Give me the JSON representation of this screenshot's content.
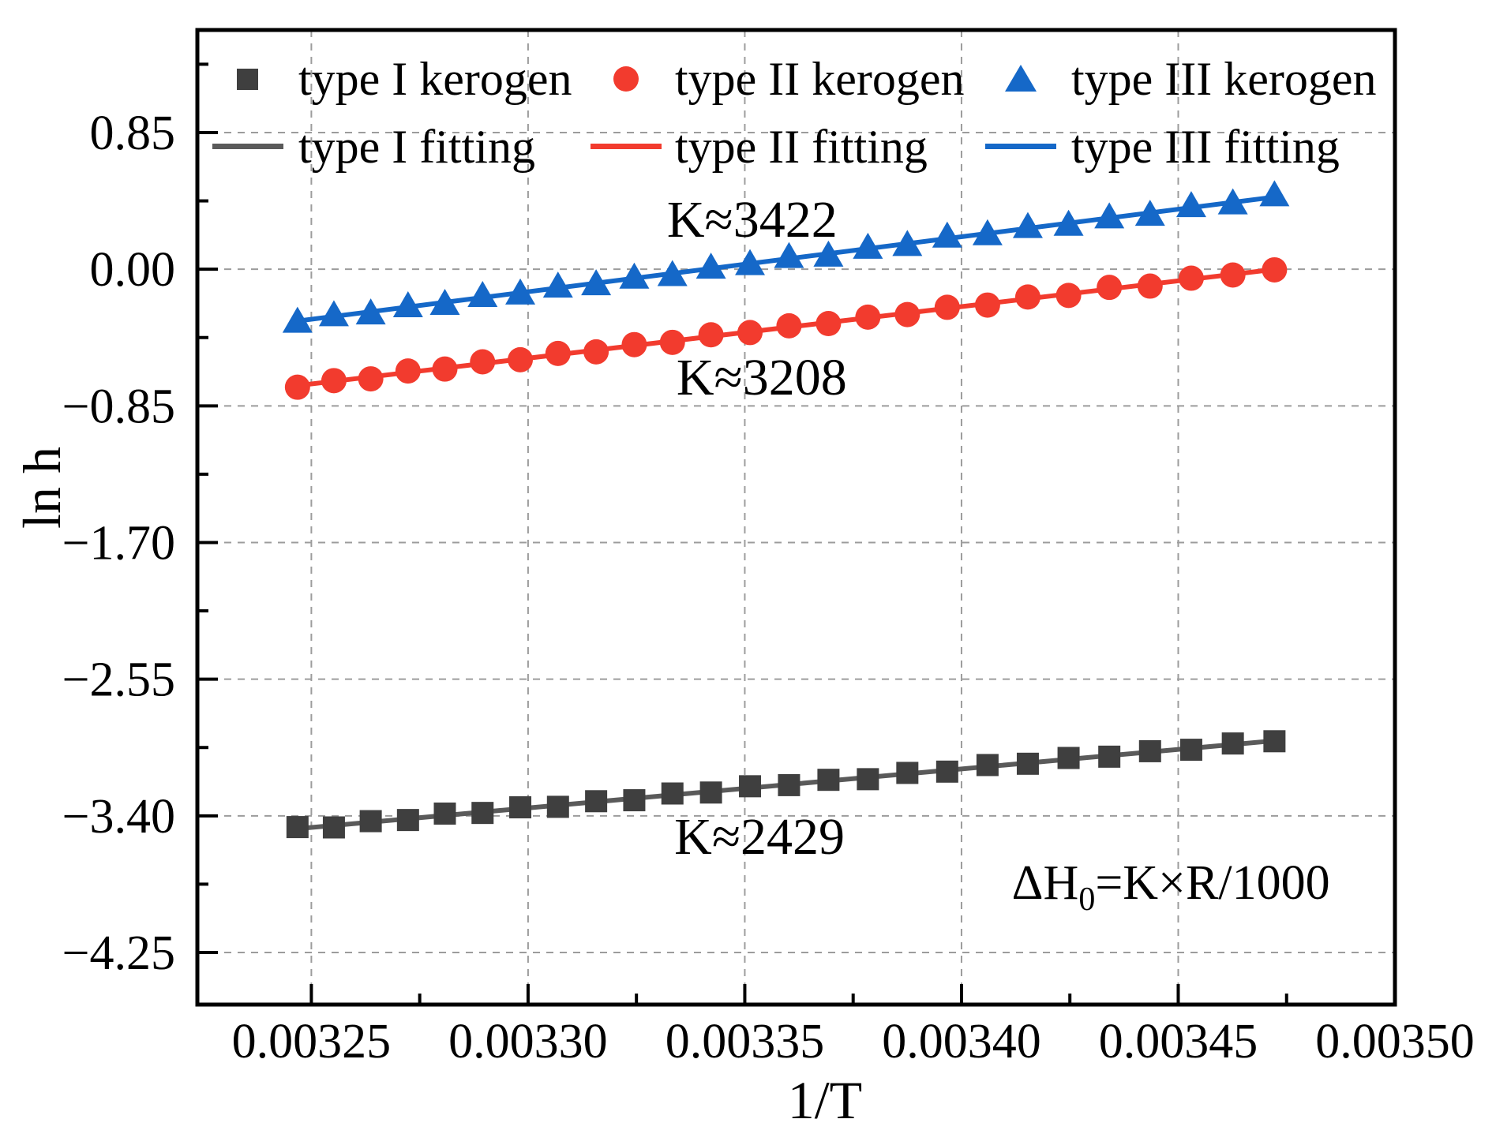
{
  "figure": {
    "background": "#ffffff"
  },
  "chart_data": {
    "type": "scatter",
    "title": "",
    "xlabel": "1/T",
    "ylabel": "ln h",
    "xlim": [
      0.0032237,
      0.0035
    ],
    "ylim": [
      -4.574,
      1.488
    ],
    "grid": true,
    "x_ticks": {
      "values": [
        0.00325,
        0.0033,
        0.00335,
        0.0034,
        0.00345,
        0.0035
      ],
      "labels": [
        "0.00325",
        "0.00330",
        "0.00335",
        "0.00340",
        "0.00345",
        "0.00350"
      ],
      "minor": [
        0.003275,
        0.003325,
        0.003375,
        0.003425,
        0.003475
      ]
    },
    "y_ticks": {
      "values": [
        0.85,
        0.0,
        -0.85,
        -1.7,
        -2.55,
        -3.4,
        -4.25
      ],
      "labels": [
        "0.85",
        "0.00",
        "−0.85",
        "−1.70",
        "−2.55",
        "−3.40",
        "−4.25"
      ],
      "minor": [
        1.275,
        0.425,
        -0.425,
        -1.275,
        -2.125,
        -2.975,
        -3.825
      ]
    },
    "x_shared": [
      0.0032468,
      0.0032552,
      0.0032637,
      0.0032723,
      0.0032808,
      0.0032895,
      0.0032982,
      0.0033069,
      0.0033157,
      0.0033245,
      0.0033333,
      0.0033422,
      0.0033512,
      0.0033602,
      0.0033693,
      0.0033784,
      0.0033875,
      0.0033967,
      0.003406,
      0.0034153,
      0.0034247,
      0.0034341,
      0.0034435,
      0.003453,
      0.0034626,
      0.0034722
    ],
    "series": [
      {
        "name": "type I kerogen",
        "fit_name": "type I fitting",
        "K": 2429,
        "marker": "square",
        "marker_color": "#3f3f3f",
        "line_color": "#5a5a5a",
        "y": [
          -3.47,
          -3.472,
          -3.433,
          -3.426,
          -3.386,
          -3.382,
          -3.347,
          -3.344,
          -3.309,
          -3.303,
          -3.261,
          -3.255,
          -3.216,
          -3.209,
          -3.176,
          -3.172,
          -3.133,
          -3.125,
          -3.084,
          -3.076,
          -3.04,
          -3.032,
          -2.998,
          -2.989,
          -2.95,
          -2.936
        ],
        "fit": {
          "x": [
            0.0032468,
            0.0034722
          ],
          "y": [
            -3.48,
            -2.933
          ]
        }
      },
      {
        "name": "type II kerogen",
        "fit_name": "type II fitting",
        "K": 3208,
        "marker": "circle",
        "marker_color": "#f23b2e",
        "line_color": "#f23b2e",
        "y": [
          -0.734,
          -0.693,
          -0.682,
          -0.633,
          -0.621,
          -0.576,
          -0.563,
          -0.524,
          -0.514,
          -0.469,
          -0.455,
          -0.408,
          -0.394,
          -0.352,
          -0.338,
          -0.298,
          -0.282,
          -0.237,
          -0.223,
          -0.173,
          -0.163,
          -0.113,
          -0.105,
          -0.056,
          -0.036,
          -0.004
        ],
        "fit": {
          "x": [
            0.0032468,
            0.0034722
          ],
          "y": [
            -0.724,
            -0.001
          ]
        }
      },
      {
        "name": "type III kerogen",
        "fit_name": "type III fitting",
        "K": 3422,
        "marker": "triangle",
        "marker_color": "#1568c8",
        "line_color": "#1568c8",
        "y": [
          -0.326,
          -0.286,
          -0.275,
          -0.23,
          -0.215,
          -0.166,
          -0.151,
          -0.108,
          -0.093,
          -0.052,
          -0.036,
          0.01,
          0.032,
          0.076,
          0.085,
          0.134,
          0.151,
          0.203,
          0.218,
          0.263,
          0.277,
          0.323,
          0.339,
          0.393,
          0.41,
          0.46
        ],
        "fit": {
          "x": [
            0.0032468,
            0.0034722
          ],
          "y": [
            -0.322,
            0.449
          ]
        }
      }
    ],
    "annotations": [
      {
        "text": "K≈3422",
        "x": 0.0033517,
        "y": 0.315,
        "color": "#0000ee"
      },
      {
        "text": "K≈3208",
        "x": 0.0033539,
        "y": -0.667,
        "color": "#ff0000"
      },
      {
        "text": "K≈2429",
        "x": 0.0033534,
        "y": -3.524,
        "color": "#000000"
      },
      {
        "pre": "ΔH",
        "sub": "0",
        "post": "=K×R/1000",
        "x": 0.0034483,
        "y": -3.803,
        "color": "#000000"
      }
    ],
    "style": {
      "grid_color": "#9c9c9c",
      "spine_color": "#000000",
      "tick_color": "#000000"
    }
  },
  "legend": {
    "items": [
      {
        "label": "type I kerogen",
        "marker": "square",
        "color": "#3f3f3f"
      },
      {
        "label": "type II kerogen",
        "marker": "circle",
        "color": "#f23b2e"
      },
      {
        "label": "type III kerogen",
        "marker": "triangle",
        "color": "#1568c8"
      },
      {
        "label": "type I fitting",
        "marker": "line",
        "color": "#5a5a5a"
      },
      {
        "label": "type II fitting",
        "marker": "line",
        "color": "#f23b2e"
      },
      {
        "label": "type III fitting",
        "marker": "line",
        "color": "#1568c8"
      }
    ]
  }
}
